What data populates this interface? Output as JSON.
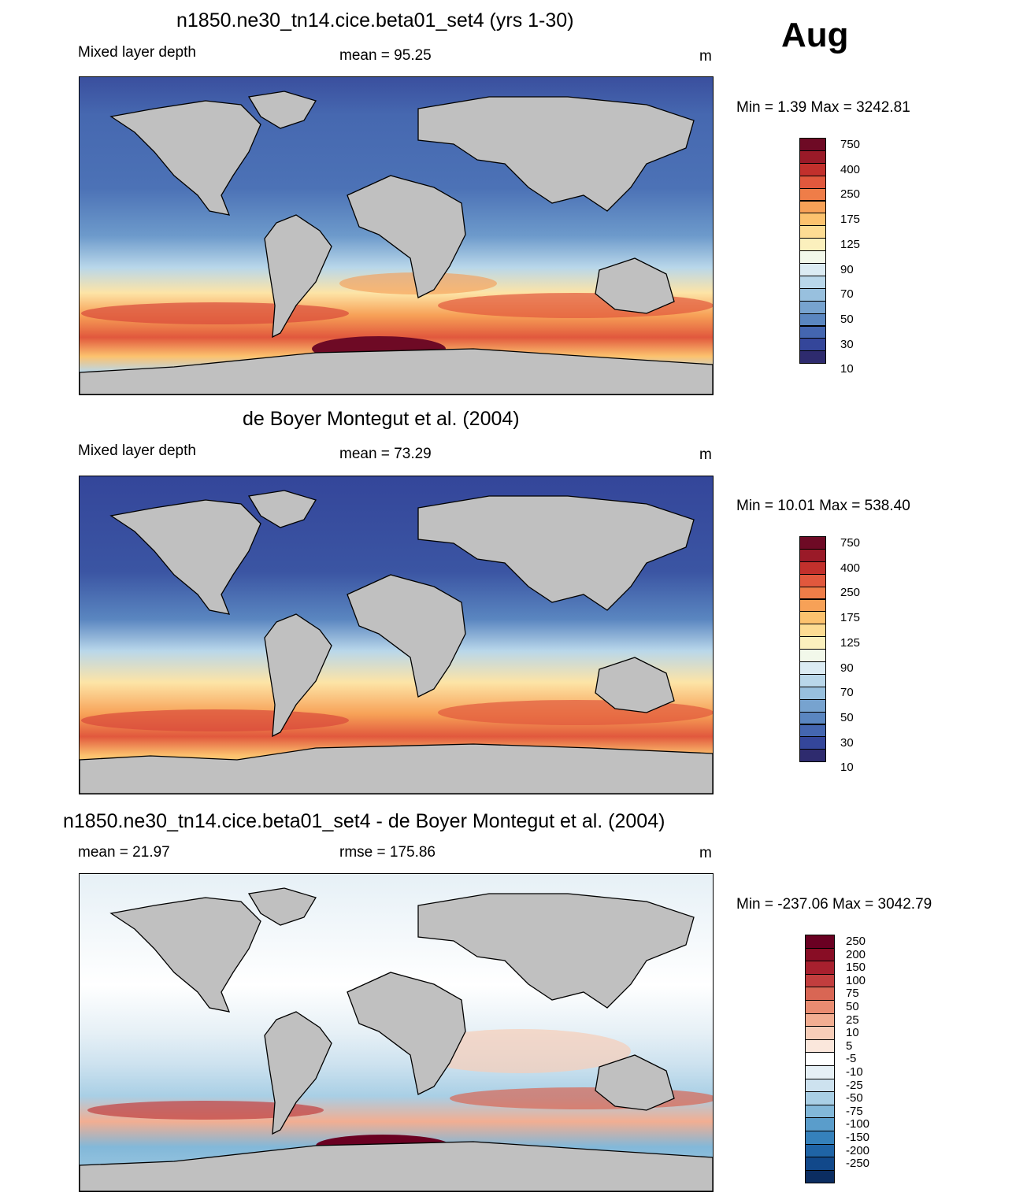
{
  "header": {
    "month": "Aug"
  },
  "panels": [
    {
      "title": "n1850.ne30_tn14.cice.beta01_set4 (yrs 1-30)",
      "left_label": "Mixed layer depth",
      "center_label": "mean =  95.25",
      "units": "m",
      "minmax": "Min =    1.39 Max = 3242.81",
      "colorbar": {
        "colors": [
          "#2e2b6e",
          "#34469a",
          "#4466b0",
          "#5a86c0",
          "#77a3cf",
          "#98c0de",
          "#b9d7ea",
          "#dbebf3",
          "#f2f8ea",
          "#fbf0bd",
          "#fddc93",
          "#fcc26e",
          "#f7a157",
          "#ef7d48",
          "#e1583d",
          "#c2302c",
          "#9a1a28",
          "#6e0a25"
        ],
        "labels": [
          "750",
          "400",
          "250",
          "175",
          "125",
          "90",
          "70",
          "50",
          "30",
          "10"
        ]
      }
    },
    {
      "title": "de Boyer Montegut et al. (2004)",
      "left_label": "Mixed layer depth",
      "center_label": "mean =  73.29",
      "units": "m",
      "minmax": "Min =  10.01 Max = 538.40",
      "colorbar": {
        "colors": [
          "#2e2b6e",
          "#34469a",
          "#4466b0",
          "#5a86c0",
          "#77a3cf",
          "#98c0de",
          "#b9d7ea",
          "#dbebf3",
          "#f2f8ea",
          "#fbf0bd",
          "#fddc93",
          "#fcc26e",
          "#f7a157",
          "#ef7d48",
          "#e1583d",
          "#c2302c",
          "#9a1a28",
          "#6e0a25"
        ],
        "labels": [
          "750",
          "400",
          "250",
          "175",
          "125",
          "90",
          "70",
          "50",
          "30",
          "10"
        ]
      }
    },
    {
      "title": "n1850.ne30_tn14.cice.beta01_set4 - de Boyer Montegut et al. (2004)",
      "left_label": "mean =  21.97",
      "center_label": "rmse = 175.86",
      "units": "m",
      "minmax": "Min = -237.06 Max = 3042.79",
      "colorbar": {
        "colors": [
          "#0b2d61",
          "#11488a",
          "#1f64a6",
          "#3581bb",
          "#5a9dcb",
          "#82b8d9",
          "#a9cfe5",
          "#cde2ef",
          "#e6f0f6",
          "#ffffff",
          "#fbe7dc",
          "#f7cdb8",
          "#f2ae92",
          "#e98c71",
          "#d96654",
          "#c23e3e",
          "#a8202e",
          "#880d25",
          "#6a0022"
        ],
        "labels": [
          "250",
          "200",
          "150",
          "100",
          "75",
          "50",
          "25",
          "10",
          "5",
          "-5",
          "-10",
          "-25",
          "-50",
          "-75",
          "-100",
          "-150",
          "-200",
          "-250"
        ]
      }
    }
  ]
}
